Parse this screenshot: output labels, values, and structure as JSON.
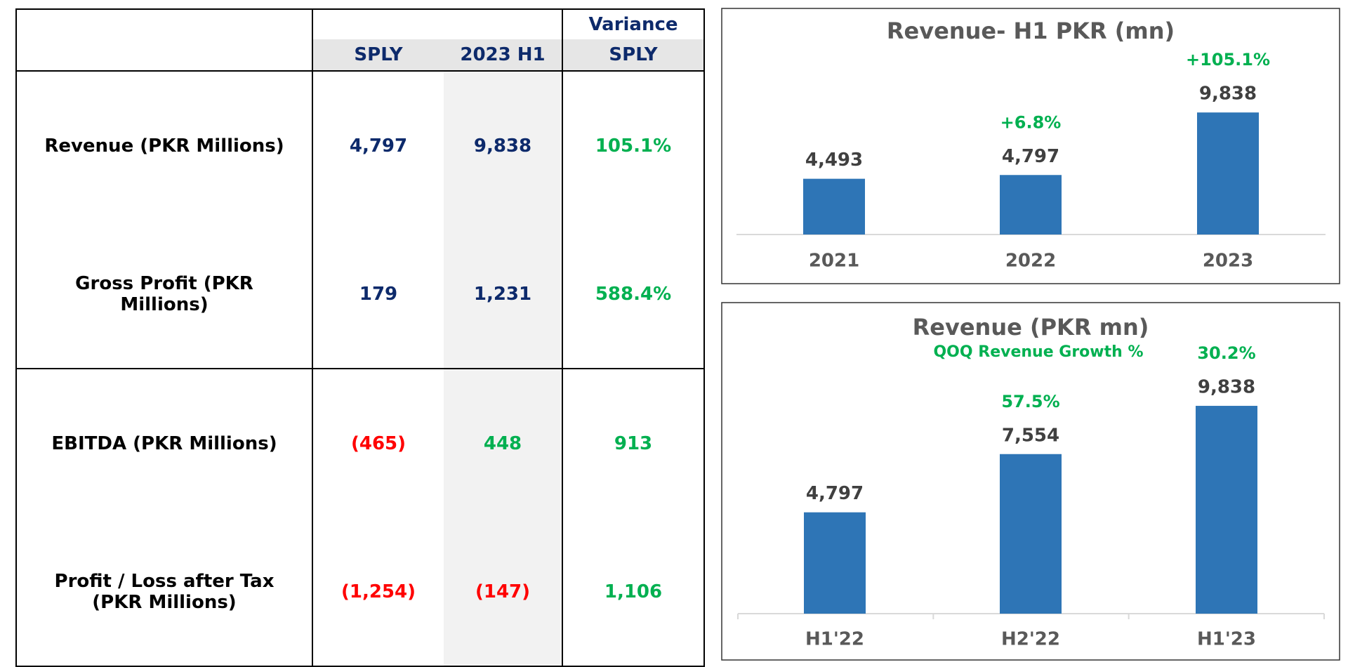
{
  "table": {
    "header": {
      "group": "Variance",
      "columns": [
        "SPLY",
        "2023 H1",
        "SPLY"
      ]
    },
    "rows": [
      {
        "label": "Revenue (PKR Millions)",
        "cells": [
          "4,797",
          "9,838",
          "105.1%"
        ],
        "colors": [
          "#0d2a6b",
          "#0d2a6b",
          "#00b050"
        ]
      },
      {
        "label": "Gross Profit (PKR Millions)",
        "cells": [
          "179",
          "1,231",
          "588.4%"
        ],
        "colors": [
          "#0d2a6b",
          "#0d2a6b",
          "#00b050"
        ]
      },
      {
        "label": "EBITDA (PKR Millions)",
        "cells": [
          "(465)",
          "448",
          "913"
        ],
        "colors": [
          "#ff0000",
          "#00b050",
          "#00b050"
        ]
      },
      {
        "label": "Profit / Loss after Tax (PKR Millions)",
        "cells": [
          "(1,254)",
          "(147)",
          "1,106"
        ],
        "colors": [
          "#ff0000",
          "#ff0000",
          "#00b050"
        ]
      }
    ]
  },
  "chart_data": [
    {
      "type": "bar",
      "title": "Revenue- H1 PKR (mn)",
      "categories": [
        "2021",
        "2022",
        "2023"
      ],
      "values": [
        4493,
        4797,
        9838
      ],
      "value_labels": [
        "4,493",
        "4,797",
        "9,838"
      ],
      "growth_labels": [
        null,
        "+6.8%",
        "+105.1%"
      ],
      "color": "#2e75b6",
      "ylim": [
        0,
        12000
      ]
    },
    {
      "type": "bar",
      "title": "Revenue (PKR mn)",
      "subtitle": "QOQ Revenue Growth %",
      "categories": [
        "H1'22",
        "H2'22",
        "H1'23"
      ],
      "values": [
        4797,
        7554,
        9838
      ],
      "value_labels": [
        "4,797",
        "7,554",
        "9,838"
      ],
      "growth_labels": [
        null,
        "57.5%",
        "30.2%"
      ],
      "color": "#2e75b6",
      "ylim": [
        0,
        12000
      ]
    }
  ]
}
